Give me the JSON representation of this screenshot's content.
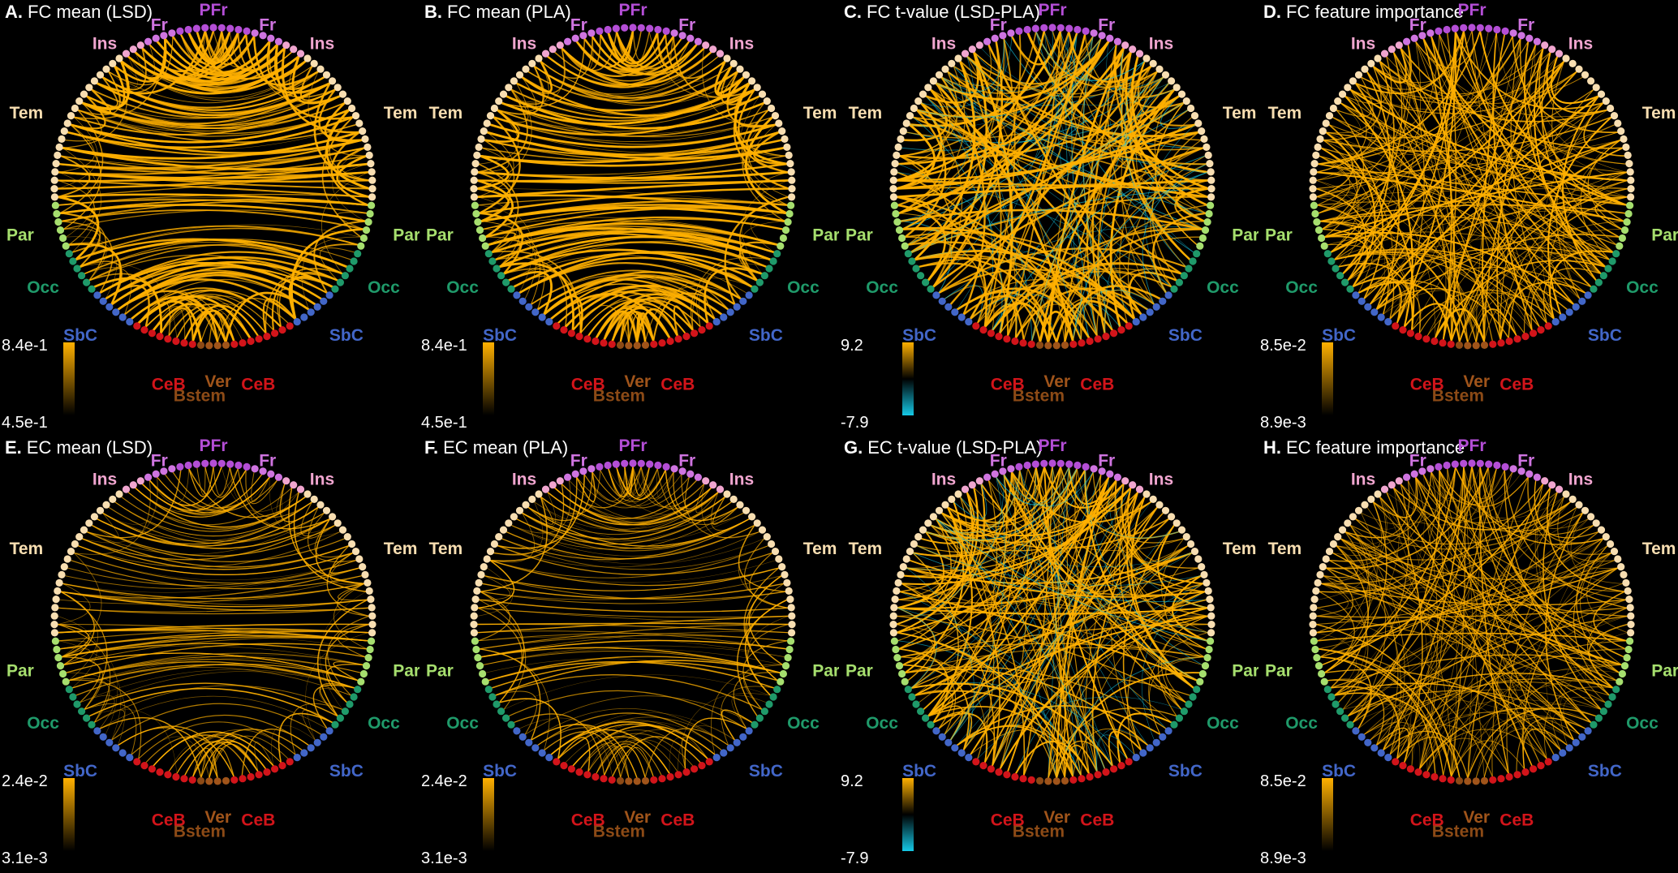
{
  "regions": [
    {
      "key": "PFr",
      "label": "PFr",
      "color": "#b44ed6",
      "count": 9
    },
    {
      "key": "FrR",
      "label": "Fr",
      "color": "#cf74e0",
      "count": 4
    },
    {
      "key": "InsR",
      "label": "Ins",
      "color": "#f0a5cf",
      "count": 3
    },
    {
      "key": "TemR",
      "label": "Tem",
      "color": "#f8deb1",
      "count": 20
    },
    {
      "key": "ParR",
      "label": "Par",
      "color": "#a6df6e",
      "count": 6
    },
    {
      "key": "OccR",
      "label": "Occ",
      "color": "#1f9a6a",
      "count": 6
    },
    {
      "key": "SbCR",
      "label": "SbC",
      "color": "#4266c8",
      "count": 6
    },
    {
      "key": "CeBR",
      "label": "CeB",
      "color": "#d2141a",
      "count": 8
    },
    {
      "key": "Ver",
      "label": "Ver",
      "color": "#a0541a",
      "count": 3
    },
    {
      "key": "Bstem",
      "label": "Bstem",
      "color": "#8c4a16",
      "count": 1
    },
    {
      "key": "CeBL",
      "label": "CeB",
      "color": "#d2141a",
      "count": 8
    },
    {
      "key": "SbCL",
      "label": "SbC",
      "color": "#4266c8",
      "count": 6
    },
    {
      "key": "OccL",
      "label": "Occ",
      "color": "#1f9a6a",
      "count": 6
    },
    {
      "key": "ParL",
      "label": "Par",
      "color": "#a6df6e",
      "count": 6
    },
    {
      "key": "TemL",
      "label": "Tem",
      "color": "#f8deb1",
      "count": 20
    },
    {
      "key": "InsL",
      "label": "Ins",
      "color": "#f0a5cf",
      "count": 3
    },
    {
      "key": "FrL",
      "label": "Fr",
      "color": "#cf74e0",
      "count": 4
    }
  ],
  "colors": {
    "positive": "#ffb000",
    "negative": "#15c8e6",
    "background": "#000000"
  },
  "panels": [
    {
      "letter": "A.",
      "title": "FC mean (LSD)",
      "cb_max": "8.4e-1",
      "cb_min": "4.5e-1",
      "scale": "sequential",
      "pattern": "fc",
      "weight": "heavy"
    },
    {
      "letter": "B.",
      "title": "FC mean (PLA)",
      "cb_max": "8.4e-1",
      "cb_min": "4.5e-1",
      "scale": "sequential",
      "pattern": "fc",
      "weight": "heavy"
    },
    {
      "letter": "C.",
      "title": "FC t-value (LSD-PLA)",
      "cb_max": "9.2",
      "cb_min": "-7.9",
      "scale": "diverging",
      "pattern": "random",
      "weight": "heavy"
    },
    {
      "letter": "D.",
      "title": "FC feature importance",
      "cb_max": "8.5e-2",
      "cb_min": "8.9e-3",
      "scale": "sequential",
      "pattern": "random",
      "weight": "medium"
    },
    {
      "letter": "E.",
      "title": "EC mean (LSD)",
      "cb_max": "2.4e-2",
      "cb_min": "3.1e-3",
      "scale": "sequential",
      "pattern": "ec",
      "weight": "light"
    },
    {
      "letter": "F.",
      "title": "EC mean (PLA)",
      "cb_max": "2.4e-2",
      "cb_min": "3.1e-3",
      "scale": "sequential",
      "pattern": "ec",
      "weight": "light"
    },
    {
      "letter": "G.",
      "title": "EC t-value (LSD-PLA)",
      "cb_max": "9.2",
      "cb_min": "-7.9",
      "scale": "diverging",
      "pattern": "random",
      "weight": "medium"
    },
    {
      "letter": "H.",
      "title": "EC feature importance",
      "cb_max": "8.5e-2",
      "cb_min": "8.9e-3",
      "scale": "sequential",
      "pattern": "random",
      "weight": "light"
    }
  ]
}
